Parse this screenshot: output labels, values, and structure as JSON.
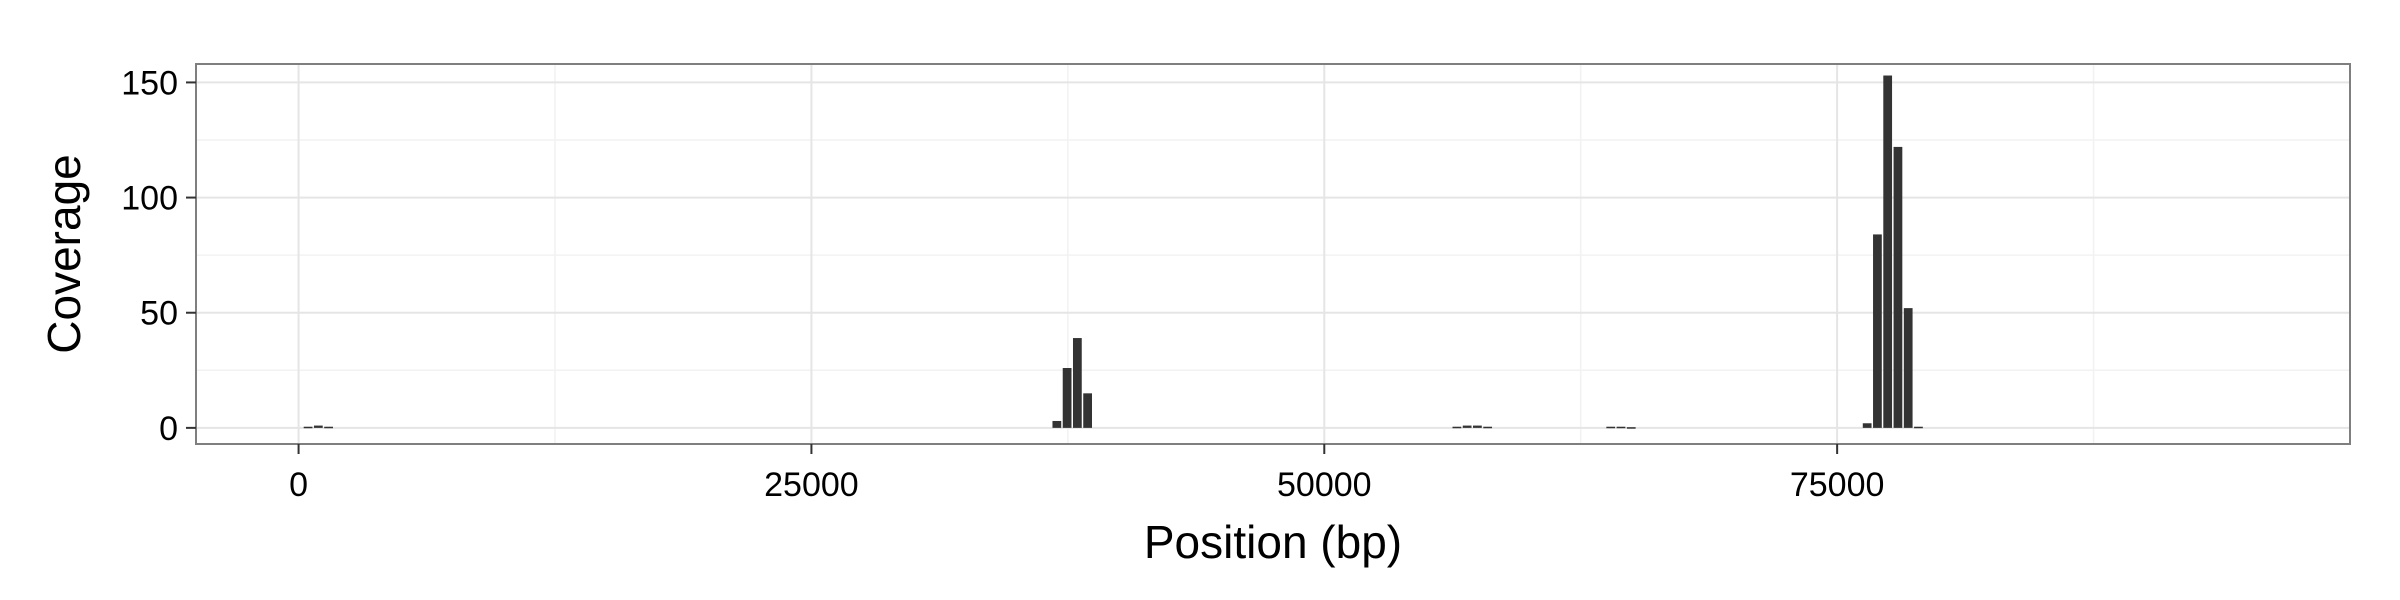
{
  "chart_data": {
    "type": "bar",
    "title": "",
    "xlabel": "Position (bp)",
    "ylabel": "Coverage",
    "xlim": [
      -5000,
      100000
    ],
    "ylim": [
      -7,
      158
    ],
    "xticks": [
      0,
      25000,
      50000,
      75000
    ],
    "xtick_labels": [
      "0",
      "25000",
      "50000",
      "75000"
    ],
    "yticks": [
      0,
      50,
      100,
      150
    ],
    "ytick_labels": [
      "0",
      "50",
      "100",
      "150"
    ],
    "bin_width": 500,
    "grid": true,
    "legend": "none",
    "bar_color": "#333333",
    "x": [
      500,
      1000,
      1500,
      37000,
      37500,
      38000,
      38500,
      56500,
      57000,
      57500,
      58000,
      64000,
      64500,
      65000,
      76500,
      77000,
      77500,
      78000,
      78500,
      79000
    ],
    "values": [
      0.5,
      1,
      0.5,
      3,
      26,
      39,
      15,
      0.5,
      1,
      1,
      0.5,
      0.5,
      0.5,
      0.3,
      2,
      84,
      153,
      122,
      52,
      0.5
    ]
  }
}
